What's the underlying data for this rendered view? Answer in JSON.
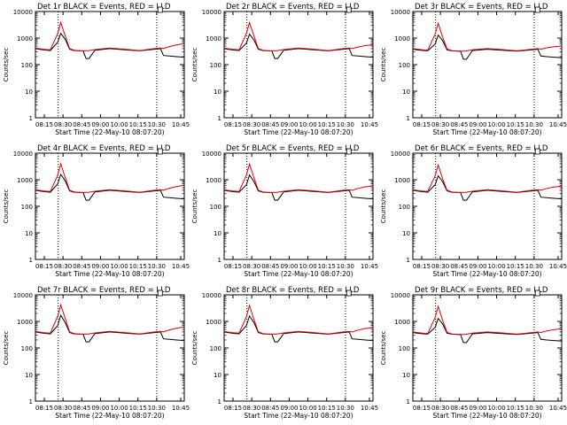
{
  "colors": {
    "events": "#000000",
    "lld": "#e00000",
    "axis": "#000000",
    "background": "#ffffff"
  },
  "shared": {
    "ylabel": "Counts/sec",
    "xlabel": "Start Time (22-May-10 08:07:20)",
    "x_tick_labels": [
      "08:15",
      "08:30",
      "08:45",
      "09:00",
      "10:00",
      "10:15",
      "10:30",
      "10:45"
    ],
    "y_tick_labels": [
      "1",
      "10",
      "100",
      "1000",
      "10000"
    ]
  },
  "chart_data": [
    {
      "panel": 0,
      "type": "line",
      "title": "Det 1r BLACK = Events, RED = LLD",
      "ylabel": "Counts/sec",
      "xlabel": "Start Time (22-May-10 08:07:20)",
      "x_ticks": [
        "08:15",
        "08:30",
        "08:45",
        "09:00",
        "10:00",
        "10:15",
        "10:30",
        "10:45"
      ],
      "y_scale": "log",
      "ylim": [
        1,
        10000
      ],
      "series": [
        {
          "name": "Events",
          "color": "black",
          "x": [
            0,
            0.05,
            0.1,
            0.15,
            0.17,
            0.2,
            0.23,
            0.26,
            0.3,
            0.32,
            0.34,
            0.36,
            0.4,
            0.5,
            0.6,
            0.7,
            0.8,
            0.84,
            0.86,
            0.9,
            0.95,
            1.0
          ],
          "y": [
            400,
            360,
            340,
            700,
            1500,
            900,
            380,
            340,
            330,
            330,
            170,
            170,
            350,
            400,
            360,
            330,
            380,
            400,
            220,
            210,
            200,
            190
          ]
        },
        {
          "name": "LLD",
          "color": "red",
          "x": [
            0,
            0.05,
            0.1,
            0.15,
            0.17,
            0.2,
            0.23,
            0.26,
            0.3,
            0.35,
            0.4,
            0.5,
            0.6,
            0.7,
            0.8,
            0.84,
            0.86,
            0.9,
            0.95,
            1.0
          ],
          "y": [
            420,
            380,
            360,
            1500,
            3900,
            1200,
            400,
            350,
            330,
            330,
            370,
            420,
            380,
            340,
            400,
            420,
            400,
            480,
            560,
            620
          ]
        }
      ]
    },
    {
      "panel": 1,
      "type": "line",
      "title": "Det 2r BLACK = Events, RED = LLD",
      "ylabel": "Counts/sec",
      "xlabel": "Start Time (22-May-10 08:07:20)",
      "x_ticks": [
        "08:15",
        "08:30",
        "08:45",
        "09:00",
        "10:00",
        "10:15",
        "10:30",
        "10:45"
      ],
      "y_scale": "log",
      "ylim": [
        1,
        10000
      ],
      "series": [
        {
          "name": "Events",
          "color": "black",
          "x": [
            0,
            0.05,
            0.1,
            0.15,
            0.17,
            0.2,
            0.23,
            0.26,
            0.3,
            0.32,
            0.34,
            0.36,
            0.4,
            0.5,
            0.6,
            0.7,
            0.8,
            0.84,
            0.86,
            0.9,
            0.95,
            1.0
          ],
          "y": [
            400,
            360,
            340,
            650,
            1400,
            850,
            380,
            340,
            330,
            330,
            170,
            170,
            350,
            400,
            360,
            330,
            380,
            400,
            220,
            210,
            200,
            190
          ]
        },
        {
          "name": "LLD",
          "color": "red",
          "x": [
            0,
            0.05,
            0.1,
            0.15,
            0.17,
            0.2,
            0.23,
            0.26,
            0.3,
            0.35,
            0.4,
            0.5,
            0.6,
            0.7,
            0.8,
            0.84,
            0.86,
            0.9,
            0.95,
            1.0
          ],
          "y": [
            420,
            380,
            360,
            1500,
            3800,
            1200,
            400,
            350,
            330,
            330,
            370,
            420,
            380,
            340,
            400,
            420,
            400,
            460,
            520,
            560
          ]
        }
      ]
    },
    {
      "panel": 2,
      "type": "line",
      "title": "Det 3r BLACK = Events, RED = LLD",
      "ylabel": "Counts/sec",
      "xlabel": "Start Time (22-May-10 08:07:20)",
      "x_ticks": [
        "08:15",
        "08:30",
        "08:45",
        "09:00",
        "10:00",
        "10:15",
        "10:30",
        "10:45"
      ],
      "y_scale": "log",
      "ylim": [
        1,
        10000
      ],
      "series": [
        {
          "name": "Events",
          "color": "black",
          "x": [
            0,
            0.05,
            0.1,
            0.15,
            0.17,
            0.2,
            0.23,
            0.26,
            0.3,
            0.32,
            0.34,
            0.36,
            0.4,
            0.5,
            0.6,
            0.7,
            0.8,
            0.84,
            0.86,
            0.9,
            0.95,
            1.0
          ],
          "y": [
            380,
            350,
            330,
            600,
            1300,
            800,
            360,
            330,
            320,
            320,
            160,
            160,
            340,
            380,
            350,
            320,
            360,
            380,
            210,
            200,
            190,
            180
          ]
        },
        {
          "name": "LLD",
          "color": "red",
          "x": [
            0,
            0.05,
            0.1,
            0.15,
            0.17,
            0.2,
            0.23,
            0.26,
            0.3,
            0.35,
            0.4,
            0.5,
            0.6,
            0.7,
            0.8,
            0.84,
            0.86,
            0.9,
            0.95,
            1.0
          ],
          "y": [
            400,
            370,
            350,
            1400,
            3600,
            1100,
            390,
            340,
            320,
            320,
            360,
            400,
            370,
            330,
            380,
            400,
            380,
            430,
            470,
            500
          ]
        }
      ]
    },
    {
      "panel": 3,
      "type": "line",
      "title": "Det 4r BLACK = Events, RED = LLD",
      "ylabel": "Counts/sec",
      "xlabel": "Start Time (22-May-10 08:07:20)",
      "x_ticks": [
        "08:15",
        "08:30",
        "08:45",
        "09:00",
        "10:00",
        "10:15",
        "10:30",
        "10:45"
      ],
      "y_scale": "log",
      "ylim": [
        1,
        10000
      ],
      "series": [
        {
          "name": "Events",
          "color": "black",
          "x": [
            0,
            0.05,
            0.1,
            0.15,
            0.17,
            0.2,
            0.23,
            0.26,
            0.3,
            0.32,
            0.34,
            0.36,
            0.4,
            0.5,
            0.6,
            0.7,
            0.8,
            0.84,
            0.86,
            0.9,
            0.95,
            1.0
          ],
          "y": [
            400,
            360,
            340,
            700,
            1600,
            900,
            380,
            340,
            330,
            330,
            170,
            170,
            350,
            400,
            360,
            330,
            380,
            400,
            220,
            210,
            200,
            190
          ]
        },
        {
          "name": "LLD",
          "color": "red",
          "x": [
            0,
            0.05,
            0.1,
            0.15,
            0.17,
            0.2,
            0.23,
            0.26,
            0.3,
            0.35,
            0.4,
            0.5,
            0.6,
            0.7,
            0.8,
            0.84,
            0.86,
            0.9,
            0.95,
            1.0
          ],
          "y": [
            420,
            380,
            360,
            1500,
            4000,
            1200,
            400,
            350,
            330,
            330,
            370,
            420,
            380,
            340,
            400,
            420,
            400,
            480,
            560,
            620
          ]
        }
      ]
    },
    {
      "panel": 4,
      "type": "line",
      "title": "Det 5r BLACK = Events, RED = LLD",
      "ylabel": "Counts/sec",
      "xlabel": "Start Time (22-May-10 08:07:20)",
      "x_ticks": [
        "08:15",
        "08:30",
        "08:45",
        "09:00",
        "10:00",
        "10:15",
        "10:30",
        "10:45"
      ],
      "y_scale": "log",
      "ylim": [
        1,
        10000
      ],
      "series": [
        {
          "name": "Events",
          "color": "black",
          "x": [
            0,
            0.05,
            0.1,
            0.15,
            0.17,
            0.2,
            0.23,
            0.26,
            0.3,
            0.32,
            0.34,
            0.36,
            0.4,
            0.5,
            0.6,
            0.7,
            0.8,
            0.84,
            0.86,
            0.9,
            0.95,
            1.0
          ],
          "y": [
            400,
            360,
            340,
            650,
            1500,
            850,
            380,
            340,
            330,
            330,
            170,
            170,
            350,
            400,
            360,
            330,
            380,
            400,
            220,
            210,
            200,
            190
          ]
        },
        {
          "name": "LLD",
          "color": "red",
          "x": [
            0,
            0.05,
            0.1,
            0.15,
            0.17,
            0.2,
            0.23,
            0.26,
            0.3,
            0.35,
            0.4,
            0.5,
            0.6,
            0.7,
            0.8,
            0.84,
            0.86,
            0.9,
            0.95,
            1.0
          ],
          "y": [
            420,
            380,
            360,
            1500,
            3900,
            1200,
            400,
            350,
            330,
            330,
            370,
            420,
            380,
            340,
            400,
            420,
            400,
            470,
            540,
            590
          ]
        }
      ]
    },
    {
      "panel": 5,
      "type": "line",
      "title": "Det 6r BLACK = Events, RED = LLD",
      "ylabel": "Counts/sec",
      "xlabel": "Start Time (22-May-10 08:07:20)",
      "x_ticks": [
        "08:15",
        "08:30",
        "08:45",
        "09:00",
        "10:00",
        "10:15",
        "10:30",
        "10:45"
      ],
      "y_scale": "log",
      "ylim": [
        1,
        10000
      ],
      "series": [
        {
          "name": "Events",
          "color": "black",
          "x": [
            0,
            0.05,
            0.1,
            0.15,
            0.17,
            0.2,
            0.23,
            0.26,
            0.3,
            0.32,
            0.34,
            0.36,
            0.4,
            0.5,
            0.6,
            0.7,
            0.8,
            0.84,
            0.86,
            0.9,
            0.95,
            1.0
          ],
          "y": [
            400,
            360,
            340,
            650,
            1400,
            850,
            380,
            340,
            330,
            330,
            170,
            170,
            350,
            400,
            360,
            330,
            380,
            400,
            220,
            210,
            200,
            190
          ]
        },
        {
          "name": "LLD",
          "color": "red",
          "x": [
            0,
            0.05,
            0.1,
            0.15,
            0.17,
            0.2,
            0.23,
            0.26,
            0.3,
            0.35,
            0.4,
            0.5,
            0.6,
            0.7,
            0.8,
            0.84,
            0.86,
            0.9,
            0.95,
            1.0
          ],
          "y": [
            420,
            380,
            360,
            1400,
            3600,
            1100,
            400,
            350,
            330,
            330,
            370,
            420,
            380,
            340,
            400,
            420,
            400,
            470,
            530,
            580
          ]
        }
      ]
    },
    {
      "panel": 6,
      "type": "line",
      "title": "Det 7r BLACK = Events, RED = LLD",
      "ylabel": "Counts/sec",
      "xlabel": "Start Time (22-May-10 08:07:20)",
      "x_ticks": [
        "08:15",
        "08:30",
        "08:45",
        "09:00",
        "10:00",
        "10:15",
        "10:30",
        "10:45"
      ],
      "y_scale": "log",
      "ylim": [
        1,
        10000
      ],
      "series": [
        {
          "name": "Events",
          "color": "black",
          "x": [
            0,
            0.05,
            0.1,
            0.15,
            0.17,
            0.2,
            0.23,
            0.26,
            0.3,
            0.32,
            0.34,
            0.36,
            0.4,
            0.5,
            0.6,
            0.7,
            0.8,
            0.84,
            0.86,
            0.9,
            0.95,
            1.0
          ],
          "y": [
            400,
            360,
            340,
            700,
            1700,
            900,
            380,
            340,
            330,
            330,
            170,
            170,
            350,
            400,
            360,
            330,
            380,
            400,
            220,
            210,
            200,
            190
          ]
        },
        {
          "name": "LLD",
          "color": "red",
          "x": [
            0,
            0.05,
            0.1,
            0.15,
            0.17,
            0.2,
            0.23,
            0.26,
            0.3,
            0.35,
            0.4,
            0.5,
            0.6,
            0.7,
            0.8,
            0.84,
            0.86,
            0.9,
            0.95,
            1.0
          ],
          "y": [
            420,
            380,
            360,
            1600,
            4200,
            1300,
            400,
            350,
            330,
            330,
            370,
            420,
            380,
            340,
            400,
            420,
            400,
            480,
            560,
            620
          ]
        }
      ]
    },
    {
      "panel": 7,
      "type": "line",
      "title": "Det 8r BLACK = Events, RED = LLD",
      "ylabel": "Counts/sec",
      "xlabel": "Start Time (22-May-10 08:07:20)",
      "x_ticks": [
        "08:15",
        "08:30",
        "08:45",
        "09:00",
        "10:00",
        "10:15",
        "10:30",
        "10:45"
      ],
      "y_scale": "log",
      "ylim": [
        1,
        10000
      ],
      "series": [
        {
          "name": "Events",
          "color": "black",
          "x": [
            0,
            0.05,
            0.1,
            0.15,
            0.17,
            0.2,
            0.23,
            0.26,
            0.3,
            0.32,
            0.34,
            0.36,
            0.4,
            0.5,
            0.6,
            0.7,
            0.8,
            0.84,
            0.86,
            0.9,
            0.95,
            1.0
          ],
          "y": [
            400,
            360,
            340,
            700,
            1600,
            900,
            380,
            340,
            330,
            330,
            170,
            170,
            350,
            400,
            360,
            330,
            380,
            400,
            220,
            210,
            200,
            190
          ]
        },
        {
          "name": "LLD",
          "color": "red",
          "x": [
            0,
            0.05,
            0.1,
            0.15,
            0.17,
            0.2,
            0.23,
            0.26,
            0.3,
            0.35,
            0.4,
            0.5,
            0.6,
            0.7,
            0.8,
            0.84,
            0.86,
            0.9,
            0.95,
            1.0
          ],
          "y": [
            420,
            380,
            360,
            1500,
            4000,
            1200,
            400,
            350,
            330,
            330,
            370,
            420,
            380,
            340,
            400,
            420,
            400,
            470,
            540,
            590
          ]
        }
      ]
    },
    {
      "panel": 8,
      "type": "line",
      "title": "Det 9r BLACK = Events, RED = LLD",
      "ylabel": "Counts/sec",
      "xlabel": "Start Time (22-May-10 08:07:20)",
      "x_ticks": [
        "08:15",
        "08:30",
        "08:45",
        "09:00",
        "10:00",
        "10:15",
        "10:30",
        "10:45"
      ],
      "y_scale": "log",
      "ylim": [
        1,
        10000
      ],
      "series": [
        {
          "name": "Events",
          "color": "black",
          "x": [
            0,
            0.05,
            0.1,
            0.15,
            0.17,
            0.2,
            0.23,
            0.26,
            0.3,
            0.32,
            0.34,
            0.36,
            0.4,
            0.5,
            0.6,
            0.7,
            0.8,
            0.84,
            0.86,
            0.9,
            0.95,
            1.0
          ],
          "y": [
            380,
            350,
            330,
            600,
            1300,
            800,
            360,
            330,
            320,
            320,
            160,
            160,
            340,
            380,
            350,
            320,
            360,
            380,
            210,
            200,
            190,
            180
          ]
        },
        {
          "name": "LLD",
          "color": "red",
          "x": [
            0,
            0.05,
            0.1,
            0.15,
            0.17,
            0.2,
            0.23,
            0.26,
            0.3,
            0.35,
            0.4,
            0.5,
            0.6,
            0.7,
            0.8,
            0.84,
            0.86,
            0.9,
            0.95,
            1.0
          ],
          "y": [
            400,
            370,
            350,
            1400,
            3700,
            1100,
            390,
            340,
            320,
            320,
            360,
            400,
            370,
            330,
            380,
            400,
            380,
            440,
            490,
            530
          ]
        }
      ]
    }
  ]
}
